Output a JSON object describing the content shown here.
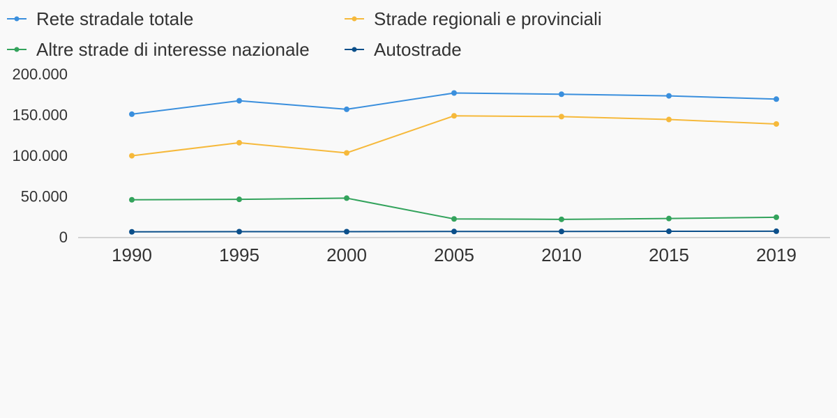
{
  "chart_data": {
    "type": "line",
    "title": "",
    "xlabel": "",
    "ylabel": "",
    "x": [
      "1990",
      "1995",
      "2000",
      "2005",
      "2010",
      "2015",
      "2019"
    ],
    "yticks": [
      0,
      50000,
      100000,
      150000,
      200000
    ],
    "ytick_labels": [
      "0",
      "50.000",
      "100.000",
      "150.000",
      "200.000"
    ],
    "ylim": [
      0,
      200000
    ],
    "grid": false,
    "legend_position": "top",
    "series": [
      {
        "name": "Rete stradale totale",
        "color": "#3a8fdd",
        "values": [
          150500,
          167000,
          156500,
          176500,
          175000,
          173000,
          169000
        ]
      },
      {
        "name": "Strade regionali e provinciali",
        "color": "#f6b93b",
        "values": [
          99500,
          115500,
          103000,
          148500,
          147500,
          144000,
          138500
        ]
      },
      {
        "name": "Altre strade di interesse nazionale",
        "color": "#33a35c",
        "values": [
          45500,
          46000,
          47500,
          22000,
          21500,
          22500,
          24000
        ]
      },
      {
        "name": "Autostrade",
        "color": "#0b4f8a",
        "values": [
          6200,
          6400,
          6400,
          6600,
          6600,
          6800,
          6900
        ]
      }
    ]
  }
}
